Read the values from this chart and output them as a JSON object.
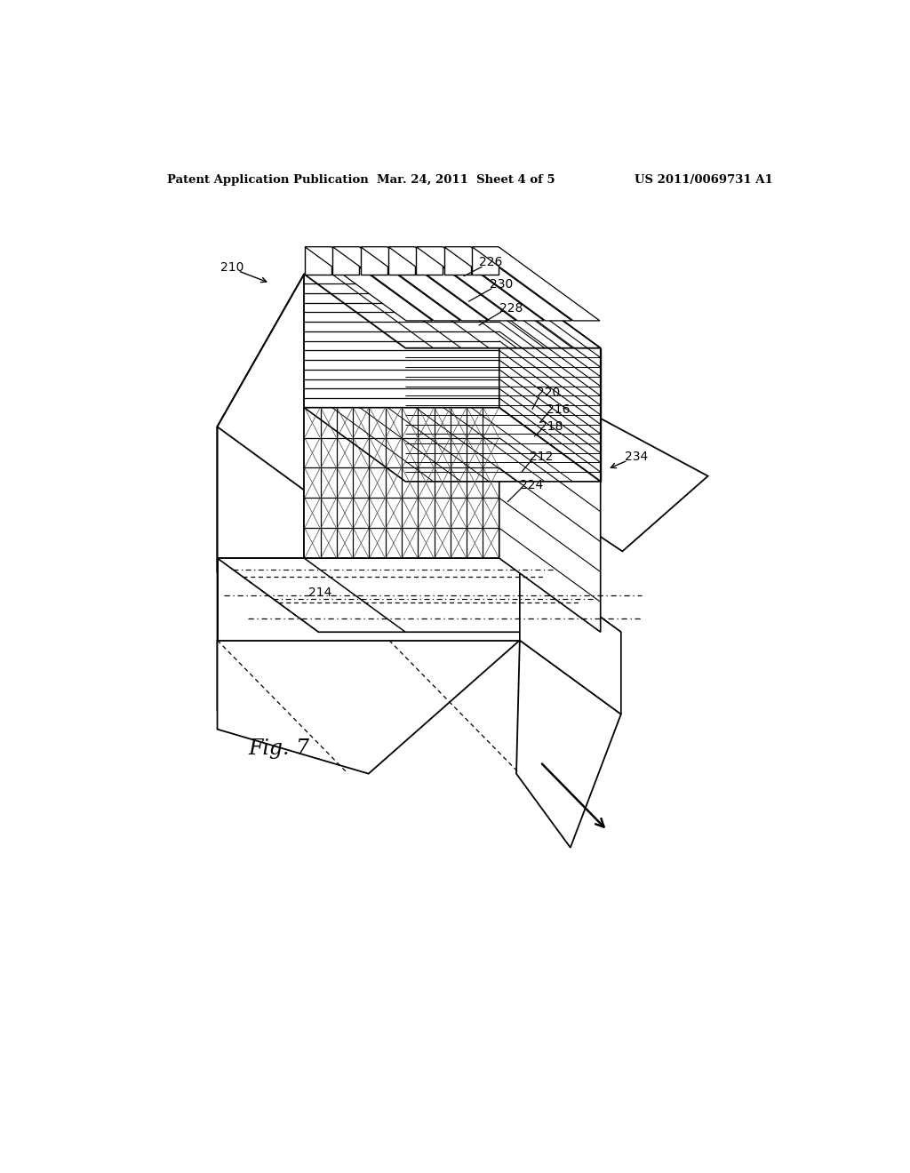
{
  "header_left": "Patent Application Publication",
  "header_center": "Mar. 24, 2011  Sheet 4 of 5",
  "header_right": "US 2011/0069731 A1",
  "fig_label": "Fig. 7",
  "bg_color": "#ffffff",
  "lc": "#000000",
  "n_slabs": 14,
  "n_grid_rows": 5,
  "n_grid_cols": 12,
  "n_tabs": 7
}
